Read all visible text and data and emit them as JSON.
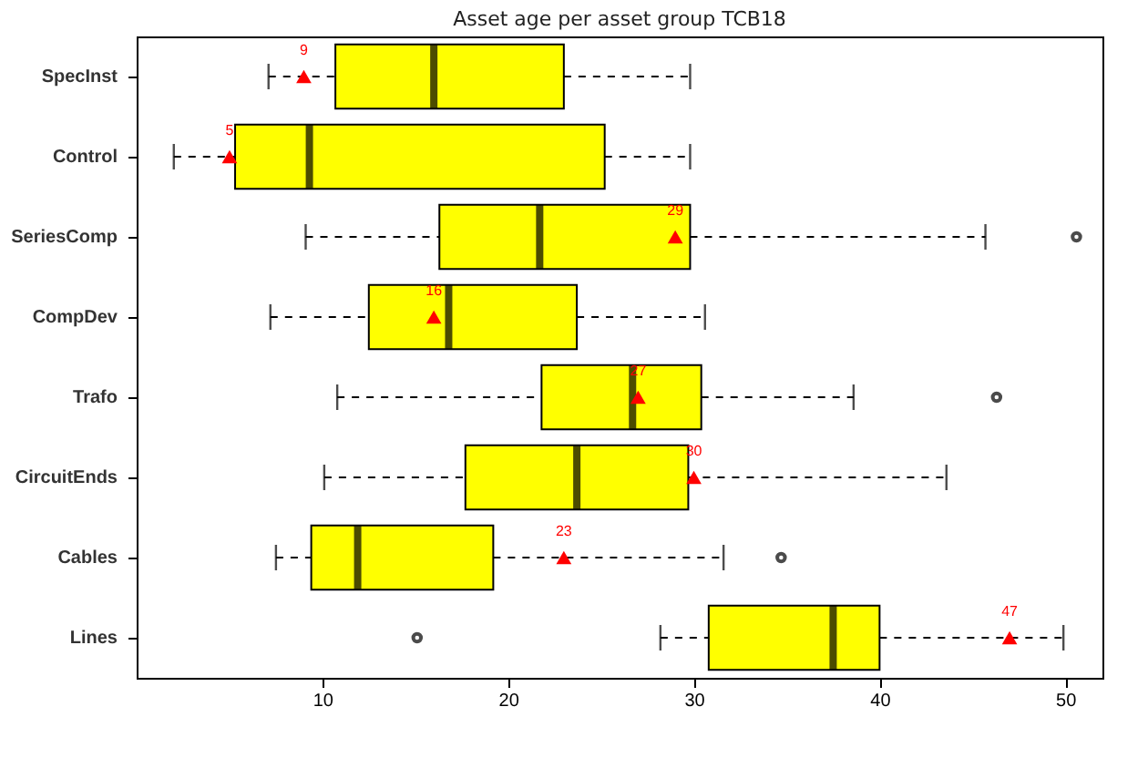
{
  "chart_data": {
    "type": "box",
    "orientation": "horizontal",
    "title": "Asset age per asset group TCB18",
    "categories": [
      "SpecInst",
      "Control",
      "SeriesComp",
      "CompDev",
      "Trafo",
      "CircuitEnds",
      "Cables",
      "Lines"
    ],
    "xlim": [
      0,
      52
    ],
    "xticks": [
      10,
      20,
      30,
      40,
      50
    ],
    "series": [
      {
        "color": "#ffff00",
        "boxes": [
          {
            "low": 7.1,
            "q1": 10.7,
            "median": 16.0,
            "q3": 23.0,
            "high": 29.8
          },
          {
            "low": 2.0,
            "q1": 5.3,
            "median": 9.3,
            "q3": 25.2,
            "high": 29.8
          },
          {
            "low": 9.1,
            "q1": 16.3,
            "median": 21.7,
            "q3": 29.8,
            "high": 45.7,
            "outliers": [
              50.6
            ]
          },
          {
            "low": 7.2,
            "q1": 12.5,
            "median": 16.8,
            "q3": 23.7,
            "high": 30.6
          },
          {
            "low": 10.8,
            "q1": 21.8,
            "median": 26.7,
            "q3": 30.4,
            "high": 38.6,
            "outliers": [
              46.3
            ]
          },
          {
            "low": 10.1,
            "q1": 17.7,
            "median": 23.7,
            "q3": 29.7,
            "high": 43.6
          },
          {
            "low": 7.5,
            "q1": 9.4,
            "median": 11.9,
            "q3": 19.2,
            "high": 31.6,
            "outliers": [
              34.7
            ]
          },
          {
            "low": 28.2,
            "q1": 30.8,
            "median": 37.5,
            "q3": 40.0,
            "high": 49.9,
            "outliers": [
              15.1
            ]
          }
        ]
      },
      {
        "type": "scatter",
        "color": "#ff0000",
        "marker": "triangle",
        "x": [
          "SpecInst",
          "Control",
          "SeriesComp",
          "CompDev",
          "Trafo",
          "CircuitEnds",
          "Cables",
          "Lines"
        ],
        "values": [
          9,
          5,
          29,
          16,
          27,
          30,
          23,
          47
        ],
        "value_labels": [
          "9",
          "5",
          "29",
          "16",
          "27",
          "30",
          "23",
          "47"
        ]
      }
    ]
  }
}
